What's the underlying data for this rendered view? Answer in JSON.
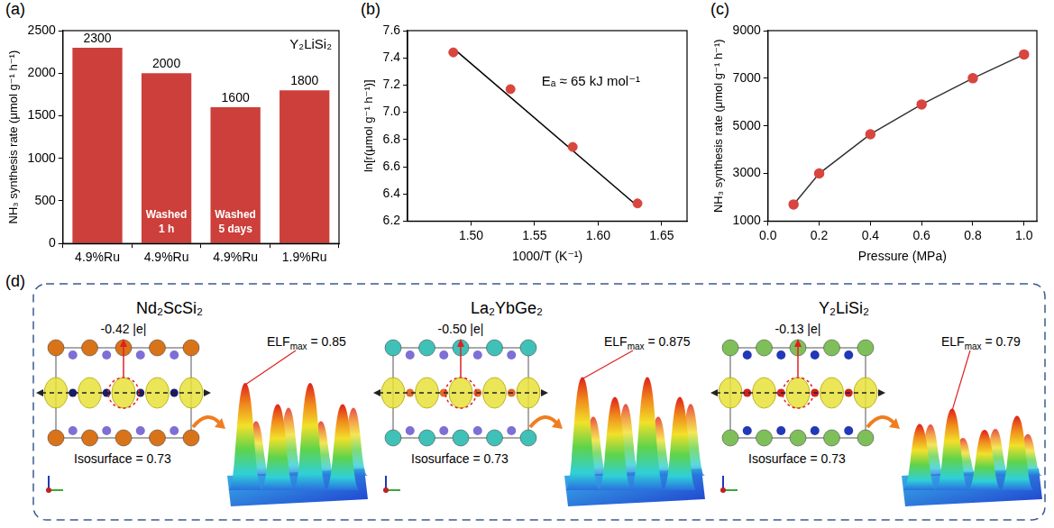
{
  "chart_data": [
    {
      "panel": "(a)",
      "type": "bar",
      "categories": [
        "4.9%Ru",
        "4.9%Ru",
        "4.9%Ru",
        "1.9%Ru"
      ],
      "values": [
        2300,
        2000,
        1600,
        1800
      ],
      "color": "#cc3f3a",
      "bar_notes": [
        null,
        "Washed 1 h",
        "Washed 5 days",
        null
      ],
      "annotation": "Y₂LiSi₂",
      "y_label": "NH₃ synthesis rate (μmol g⁻¹ h⁻¹)",
      "ylim": [
        0,
        2500
      ],
      "yticks": [
        0,
        500,
        1000,
        1500,
        2000,
        2500
      ],
      "data_labels": true,
      "grid": false
    },
    {
      "panel": "(b)",
      "type": "scatter",
      "series": [
        {
          "type": "scatter",
          "color": "#d9453f",
          "marker": "circle",
          "x": [
            1.486,
            1.531,
            1.58,
            1.631
          ],
          "values": [
            7.44,
            7.17,
            6.745,
            6.33
          ]
        },
        {
          "type": "line",
          "color": "#000000",
          "line_style": "solid",
          "x": [
            1.486,
            1.631
          ],
          "values": [
            7.47,
            6.31
          ]
        }
      ],
      "annotation": "Eₐ ≈ 65 kJ mol⁻¹",
      "x_label": "1000/T (K⁻¹)",
      "y_label": "ln[r(μmol g⁻¹ h⁻¹)]",
      "xlim": [
        1.45,
        1.67
      ],
      "xticks": [
        {
          "value": 1.5,
          "label": "1.50"
        },
        {
          "value": 1.55,
          "label": "1.55"
        },
        {
          "value": 1.6,
          "label": "1.60"
        },
        {
          "value": 1.65,
          "label": "1.65"
        }
      ],
      "ylim": [
        6.2,
        7.6
      ],
      "yticks": [
        6.2,
        6.4,
        6.6,
        6.8,
        {
          "value": 7,
          "label": "7.0"
        },
        7.2,
        7.4,
        7.6
      ],
      "grid": false
    },
    {
      "panel": "(c)",
      "type": "line",
      "x": [
        0.1,
        0.2,
        0.4,
        0.6,
        0.8,
        1.0
      ],
      "values": [
        1700,
        3000,
        4650,
        5900,
        7000,
        8000
      ],
      "color": "#d9453f",
      "marker": "circle",
      "x_label": "Pressure (MPa)",
      "y_label": "NH₃ synthesis rate (μmol g⁻¹ h⁻¹)",
      "xlim": [
        0,
        1.05
      ],
      "xticks": [
        {
          "value": 0,
          "label": "0.0"
        },
        {
          "value": 0.2,
          "label": "0.2"
        },
        {
          "value": 0.4,
          "label": "0.4"
        },
        {
          "value": 0.6,
          "label": "0.6"
        },
        {
          "value": 0.8,
          "label": "0.8"
        },
        {
          "value": 1,
          "label": "1.0"
        }
      ],
      "ylim": [
        1000,
        9000
      ],
      "yticks": [
        1000,
        3000,
        5000,
        7000,
        9000
      ],
      "grid": false
    }
  ],
  "diagram": {
    "panel": "(d)",
    "structures": [
      {
        "title": "Nd₂ScSi₂",
        "charge": "-0.42 |e|",
        "elf": {
          "main": "ELF",
          "sub": "max",
          "rest": " = 0.85"
        },
        "isosurface": "Isosurface = 0.73"
      },
      {
        "title": "La₂YbGe₂",
        "charge": "-0.50 |e|",
        "elf": {
          "main": "ELF",
          "sub": "max",
          "rest": " = 0.875"
        },
        "isosurface": "Isosurface = 0.73"
      },
      {
        "title": "Y₂LiSi₂",
        "charge": "-0.13 |e|",
        "elf": {
          "main": "ELF",
          "sub": "max",
          "rest": " = 0.79"
        },
        "isosurface": "Isosurface = 0.73"
      }
    ]
  }
}
